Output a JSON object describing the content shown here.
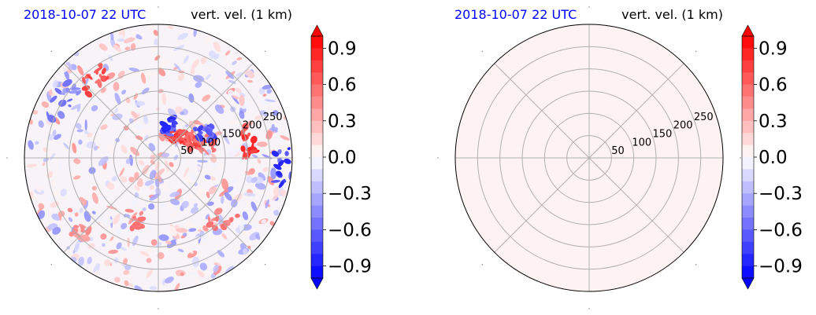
{
  "chart_data": [
    {
      "type": "heatmap",
      "projection": "polar",
      "date_label": "2018-10-07 22 UTC",
      "variable_label": "vert. vel. (1 km)",
      "radial_ticks": [
        "50",
        "100",
        "150",
        "200",
        "250"
      ],
      "radial_max": 300,
      "field_fill": "pattern",
      "colorbar": {
        "colormap": "bwr",
        "vmin": -1.0,
        "vmax": 1.0,
        "levels": 20,
        "extend": "both",
        "tick_labels": [
          "0.9",
          "0.6",
          "0.3",
          "0.0",
          "−0.3",
          "−0.6",
          "−0.9"
        ],
        "tick_values": [
          0.9,
          0.6,
          0.3,
          0.0,
          -0.3,
          -0.6,
          -0.9
        ]
      },
      "features": [
        {
          "angle_deg": 55,
          "radius": 65,
          "value": 1.0
        },
        {
          "angle_deg": 40,
          "radius": 80,
          "value": 0.9
        },
        {
          "angle_deg": 25,
          "radius": 90,
          "value": 0.8
        },
        {
          "angle_deg": 15,
          "radius": 110,
          "value": 0.7
        },
        {
          "angle_deg": 70,
          "radius": 75,
          "value": -0.9
        },
        {
          "angle_deg": 30,
          "radius": 120,
          "value": -0.8
        },
        {
          "angle_deg": 10,
          "radius": 210,
          "value": 1.0
        },
        {
          "angle_deg": -5,
          "radius": 280,
          "value": -0.9
        },
        {
          "angle_deg": 130,
          "radius": 230,
          "value": 0.9
        },
        {
          "angle_deg": 150,
          "radius": 250,
          "value": -0.6
        },
        {
          "angle_deg": -110,
          "radius": 150,
          "value": 0.6
        },
        {
          "angle_deg": -140,
          "radius": 240,
          "value": 0.5
        },
        {
          "angle_deg": -45,
          "radius": 200,
          "value": 0.6
        }
      ]
    },
    {
      "type": "heatmap",
      "projection": "polar",
      "date_label": "2018-10-07 22 UTC",
      "variable_label": "vert. vel. (1 km)",
      "radial_ticks": [
        "50",
        "100",
        "150",
        "200",
        "250"
      ],
      "radial_max": 300,
      "field_fill": "uniform",
      "uniform_value": 0.05,
      "colorbar": {
        "colormap": "bwr",
        "vmin": -1.0,
        "vmax": 1.0,
        "levels": 20,
        "extend": "both",
        "tick_labels": [
          "0.9",
          "0.6",
          "0.3",
          "0.0",
          "−0.3",
          "−0.6",
          "−0.9"
        ],
        "tick_values": [
          0.9,
          0.6,
          0.3,
          0.0,
          -0.3,
          -0.6,
          -0.9
        ]
      },
      "features": []
    }
  ]
}
